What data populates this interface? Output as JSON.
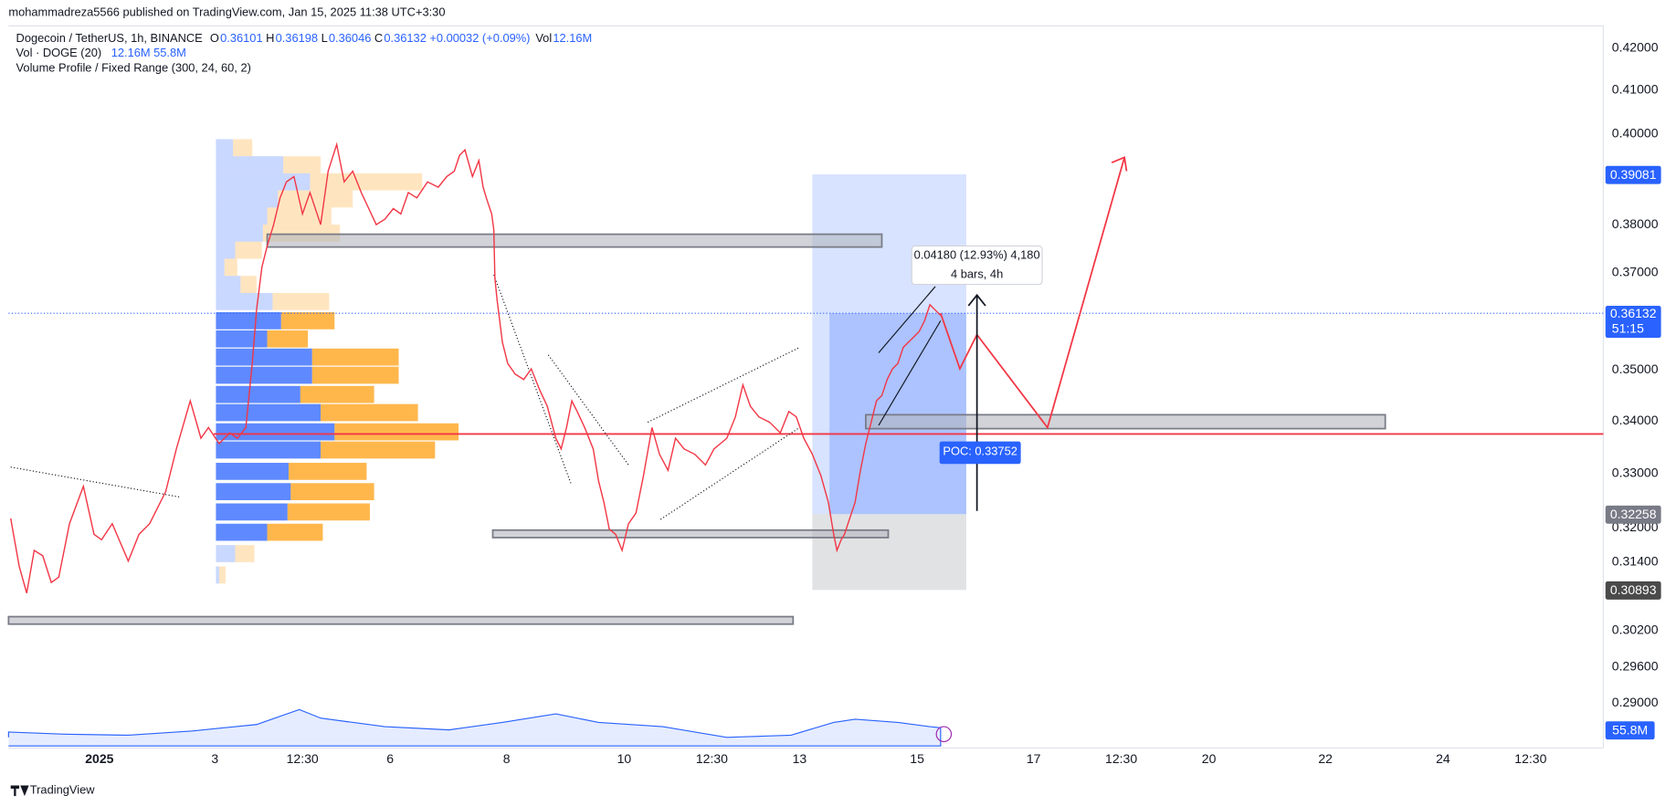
{
  "header": {
    "publisher": "mohammadreza5566 published on TradingView.com, Jan 15, 2025 11:38 UTC+3:30"
  },
  "legend": {
    "symbol": "Dogecoin / TetherUS, 1h, BINANCE",
    "ohlc": [
      {
        "label": "O",
        "value": "0.36101"
      },
      {
        "label": "H",
        "value": "0.36198"
      },
      {
        "label": "L",
        "value": "0.36046"
      },
      {
        "label": "C",
        "value": "0.36132"
      }
    ],
    "change": "+0.00032 (+0.09%)",
    "volume": {
      "label": "Vol",
      "value": "12.16M"
    },
    "volume_indicator": {
      "name": "Vol · DOGE (20)",
      "values": [
        "12.16M",
        "55.8M"
      ]
    },
    "volume_profile": "Volume Profile / Fixed Range (300, 24, 60, 2)"
  },
  "price_axis": [
    "0.42000",
    "0.41000",
    "0.40000",
    "0.38000",
    "0.37000",
    "0.35000",
    "0.34000",
    "0.33000",
    "0.32000",
    "0.31400",
    "0.30200",
    "0.29600",
    "0.29000"
  ],
  "price_badges": {
    "target": "0.39081",
    "last": "0.36132",
    "countdown": "51:15",
    "stop": "0.32258",
    "low": "0.30893",
    "volume": "55.8M"
  },
  "time_axis": [
    "2025",
    "3",
    "12:30",
    "6",
    "8",
    "10",
    "12:30",
    "13",
    "15",
    "17",
    "12:30",
    "20",
    "22",
    "24",
    "12:30"
  ],
  "annotations": {
    "measure": "0.04180 (12.93%) 4,180",
    "measure_bars": "4 bars, 4h",
    "poc": "POC: 0.33752"
  },
  "footer": "TradingView"
}
